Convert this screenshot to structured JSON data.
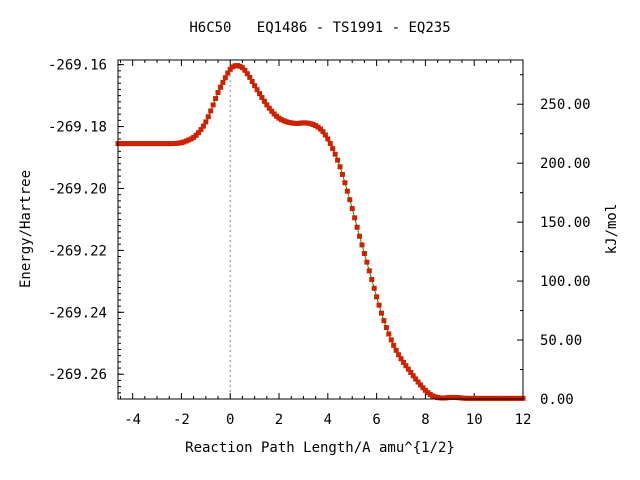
{
  "chart_data": {
    "type": "line",
    "title": "H6C50   EQ1486 - TS1991 - EQ235",
    "xlabel": "Reaction Path Length/A amu^{1/2}",
    "ylabel": "Energy/Hartree",
    "y2label": "kJ/mol",
    "xlim": [
      -4.6,
      12.0
    ],
    "ylim": [
      -269.268,
      -269.1585
    ],
    "y2lim": [
      0.0,
      287.5
    ],
    "xticks": [
      -4,
      -2,
      0,
      2,
      4,
      6,
      8,
      10,
      12
    ],
    "xtick_labels": [
      "-4",
      "-2",
      "0",
      "2",
      "4",
      "6",
      "8",
      "10",
      "12"
    ],
    "yticks": [
      -269.16,
      -269.18,
      -269.2,
      -269.22,
      -269.24,
      -269.26
    ],
    "ytick_labels": [
      "-269.16",
      "-269.18",
      "-269.20",
      "-269.22",
      "-269.24",
      "-269.26"
    ],
    "y2ticks": [
      0,
      50,
      100,
      150,
      200,
      250
    ],
    "y2tick_labels": [
      "0.00",
      "50.00",
      "100.00",
      "150.00",
      "200.00",
      "250.00"
    ],
    "ts_x": 0.0,
    "grid": false,
    "colors": {
      "line": "#00a000",
      "marker": "#cc2200",
      "ts_line": "#888888"
    },
    "series": [
      {
        "x": [
          -4.6,
          -4.0,
          -3.5,
          -3.0,
          -2.5,
          -2.0,
          -1.75,
          -1.5,
          -1.25,
          -1.0,
          -0.75,
          -0.5,
          -0.25,
          0.0,
          0.25,
          0.5,
          0.75,
          1.0,
          1.25,
          1.5,
          1.75,
          2.0,
          2.25,
          2.5,
          2.75,
          3.0,
          3.25,
          3.5,
          3.75,
          4.0,
          4.25,
          4.5,
          4.75,
          5.0,
          5.25,
          5.5,
          5.75,
          6.0,
          6.25,
          6.5,
          6.75,
          7.0,
          7.25,
          7.5,
          7.75,
          8.0,
          8.25,
          8.5,
          8.75,
          9.0,
          9.25,
          9.5,
          9.75,
          10.0,
          10.5,
          11.0,
          11.5,
          12.0
        ],
        "y": [
          -269.1855,
          -269.1855,
          -269.1855,
          -269.1855,
          -269.1855,
          -269.1852,
          -269.1845,
          -269.1835,
          -269.1815,
          -269.1785,
          -269.174,
          -269.169,
          -269.165,
          -269.1615,
          -269.1603,
          -269.161,
          -269.1635,
          -269.1668,
          -269.17,
          -269.173,
          -269.1755,
          -269.1773,
          -269.1783,
          -269.1788,
          -269.179,
          -269.1788,
          -269.179,
          -269.1797,
          -269.1812,
          -269.184,
          -269.188,
          -269.193,
          -269.1995,
          -269.2065,
          -269.214,
          -269.221,
          -269.228,
          -269.235,
          -269.2415,
          -269.247,
          -269.2515,
          -269.255,
          -269.2578,
          -269.2605,
          -269.263,
          -269.2652,
          -269.2668,
          -269.2675,
          -269.2677,
          -269.2675,
          -269.2675,
          -269.2677,
          -269.2678,
          -269.2678,
          -269.2678,
          -269.2678,
          -269.2678,
          -269.2678
        ]
      }
    ]
  }
}
